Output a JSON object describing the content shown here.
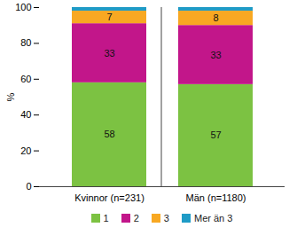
{
  "chart_data": {
    "type": "bar",
    "stacked": true,
    "data_labels": true,
    "categories": [
      "Kvinnor (n=231)",
      "Män (n=1180)"
    ],
    "series": [
      {
        "name": "1",
        "color": "#7cc242",
        "values": [
          58,
          57
        ]
      },
      {
        "name": "2",
        "color": "#c2168a",
        "values": [
          33,
          33
        ]
      },
      {
        "name": "3",
        "color": "#f8a822",
        "values": [
          7,
          8
        ]
      },
      {
        "name": "Mer än 3",
        "color": "#1f9bc6",
        "values": [
          2,
          2
        ],
        "value_labels": [
          null,
          null
        ]
      }
    ],
    "y_label": "%",
    "ylim": [
      0,
      100
    ],
    "yticks": [
      0,
      20,
      40,
      60,
      80,
      100
    ]
  }
}
